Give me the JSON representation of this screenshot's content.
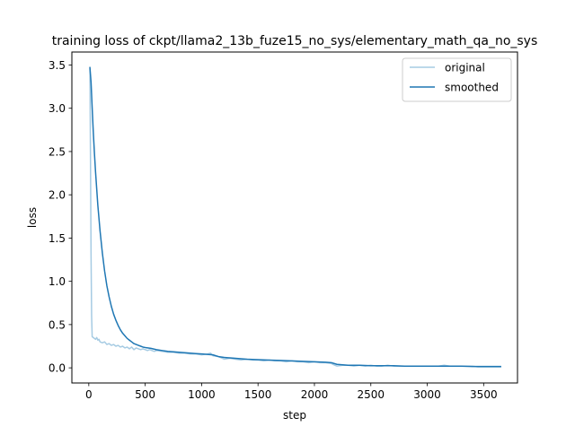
{
  "chart_data": {
    "type": "line",
    "title": "training loss of ckpt/llama2_13b_fuze15_no_sys/elementary_math_qa_no_sys",
    "xlabel": "step",
    "ylabel": "loss",
    "xlim": [
      -150,
      3800
    ],
    "ylim": [
      -0.175,
      3.65
    ],
    "xticks": [
      0,
      500,
      1000,
      1500,
      2000,
      2500,
      3000,
      3500
    ],
    "yticks": [
      0.0,
      0.5,
      1.0,
      1.5,
      2.0,
      2.5,
      3.0,
      3.5
    ],
    "xtick_labels": [
      "0",
      "500",
      "1000",
      "1500",
      "2000",
      "2500",
      "3000",
      "3500"
    ],
    "ytick_labels": [
      "0.0",
      "0.5",
      "1.0",
      "1.5",
      "2.0",
      "2.5",
      "3.0",
      "3.5"
    ],
    "grid": false,
    "legend_position": "top-right",
    "series": [
      {
        "name": "original",
        "color": "#a6cbe3",
        "x": [
          10,
          15,
          20,
          25,
          30,
          40,
          50,
          60,
          70,
          80,
          90,
          100,
          120,
          140,
          160,
          180,
          200,
          220,
          240,
          260,
          280,
          300,
          320,
          340,
          360,
          380,
          400,
          420,
          440,
          460,
          480,
          500,
          520,
          540,
          560,
          580,
          600,
          650,
          700,
          750,
          800,
          850,
          900,
          950,
          1000,
          1050,
          1080,
          1100,
          1150,
          1200,
          1250,
          1300,
          1350,
          1400,
          1450,
          1500,
          1550,
          1600,
          1650,
          1700,
          1750,
          1800,
          1850,
          1900,
          1950,
          2000,
          2050,
          2100,
          2150,
          2180,
          2200,
          2250,
          2300,
          2350,
          2400,
          2450,
          2500,
          2550,
          2600,
          2650,
          2700,
          2750,
          2800,
          2850,
          2900,
          2950,
          3000,
          3050,
          3100,
          3150,
          3200,
          3250,
          3300,
          3350,
          3400,
          3450,
          3500,
          3550,
          3600,
          3650
        ],
        "y": [
          3.45,
          2.4,
          1.3,
          0.6,
          0.36,
          0.35,
          0.34,
          0.33,
          0.35,
          0.32,
          0.33,
          0.3,
          0.29,
          0.3,
          0.27,
          0.28,
          0.26,
          0.27,
          0.25,
          0.26,
          0.24,
          0.25,
          0.23,
          0.24,
          0.22,
          0.24,
          0.21,
          0.23,
          0.22,
          0.21,
          0.22,
          0.21,
          0.2,
          0.21,
          0.2,
          0.19,
          0.2,
          0.19,
          0.18,
          0.18,
          0.17,
          0.17,
          0.16,
          0.16,
          0.15,
          0.16,
          0.17,
          0.14,
          0.13,
          0.1,
          0.11,
          0.1,
          0.09,
          0.1,
          0.09,
          0.09,
          0.08,
          0.09,
          0.08,
          0.08,
          0.07,
          0.08,
          0.07,
          0.07,
          0.06,
          0.07,
          0.06,
          0.06,
          0.05,
          0.03,
          0.02,
          0.03,
          0.03,
          0.02,
          0.03,
          0.02,
          0.03,
          0.02,
          0.02,
          0.03,
          0.02,
          0.02,
          0.02,
          0.02,
          0.02,
          0.02,
          0.02,
          0.02,
          0.02,
          0.03,
          0.02,
          0.02,
          0.02,
          0.02,
          0.02,
          0.01,
          0.01,
          0.01,
          0.01,
          0.01
        ]
      },
      {
        "name": "smoothed",
        "color": "#1f77b4",
        "x": [
          10,
          20,
          30,
          40,
          50,
          60,
          80,
          100,
          120,
          140,
          160,
          180,
          200,
          220,
          240,
          260,
          280,
          300,
          320,
          340,
          360,
          380,
          400,
          420,
          440,
          460,
          480,
          500,
          550,
          600,
          650,
          700,
          750,
          800,
          850,
          900,
          950,
          1000,
          1050,
          1100,
          1150,
          1200,
          1250,
          1300,
          1400,
          1500,
          1600,
          1700,
          1800,
          1900,
          2000,
          2100,
          2150,
          2200,
          2250,
          2300,
          2400,
          2500,
          2600,
          2700,
          2800,
          2900,
          3000,
          3100,
          3200,
          3300,
          3400,
          3500,
          3600,
          3650
        ],
        "y": [
          3.47,
          3.3,
          3.0,
          2.72,
          2.48,
          2.26,
          1.88,
          1.58,
          1.33,
          1.12,
          0.95,
          0.82,
          0.71,
          0.62,
          0.55,
          0.49,
          0.44,
          0.4,
          0.37,
          0.34,
          0.32,
          0.3,
          0.28,
          0.27,
          0.26,
          0.25,
          0.24,
          0.235,
          0.225,
          0.21,
          0.2,
          0.19,
          0.185,
          0.18,
          0.175,
          0.17,
          0.165,
          0.16,
          0.155,
          0.15,
          0.13,
          0.12,
          0.115,
          0.11,
          0.1,
          0.095,
          0.09,
          0.085,
          0.08,
          0.075,
          0.07,
          0.065,
          0.06,
          0.04,
          0.035,
          0.03,
          0.03,
          0.025,
          0.025,
          0.025,
          0.02,
          0.02,
          0.02,
          0.02,
          0.02,
          0.02,
          0.015,
          0.015,
          0.015,
          0.015
        ]
      }
    ]
  }
}
